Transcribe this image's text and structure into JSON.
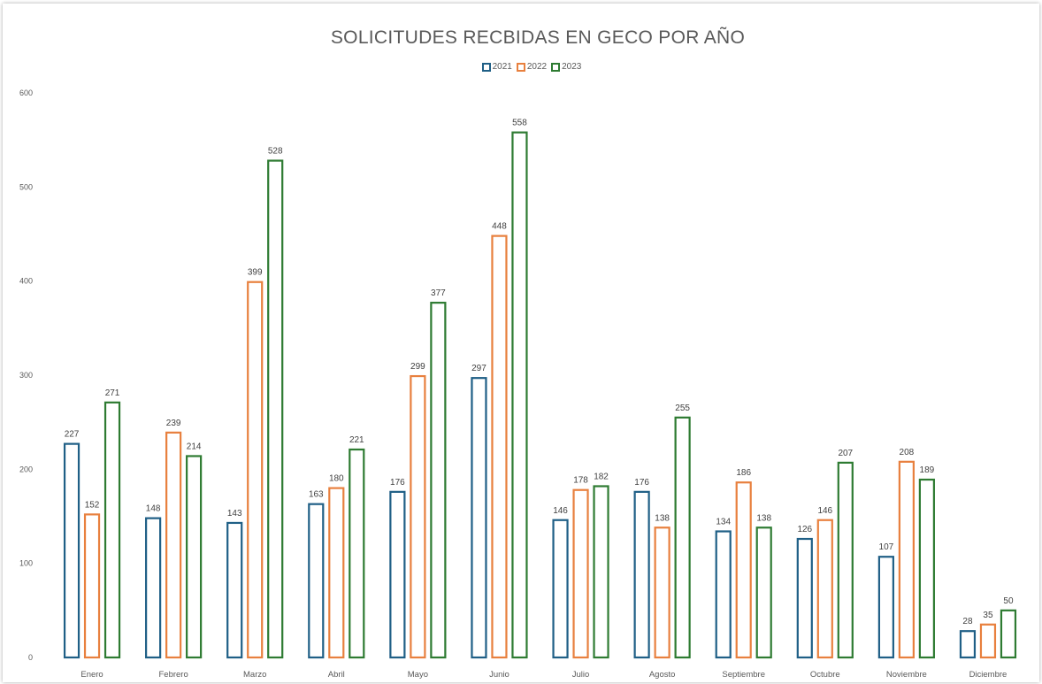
{
  "chart_data": {
    "type": "bar",
    "title": "SOLICITUDES RECBIDAS EN GECO POR AÑO",
    "xlabel": "",
    "ylabel": "",
    "ylim": [
      0,
      600
    ],
    "yticks": [
      "0",
      "100",
      "200",
      "300",
      "400",
      "500",
      "600"
    ],
    "grid": false,
    "legend_position": "top",
    "categories": [
      "Enero",
      "Febrero",
      "Marzo",
      "Abril",
      "Mayo",
      "Junio",
      "Julio",
      "Agosto",
      "Septiembre",
      "Octubre",
      "Noviembre",
      "Diciembre"
    ],
    "series": [
      {
        "name": "2021",
        "color": "#1f5f86",
        "values": [
          227,
          148,
          143,
          163,
          176,
          297,
          146,
          176,
          134,
          126,
          107,
          28
        ]
      },
      {
        "name": "2022",
        "color": "#e8803e",
        "values": [
          152,
          239,
          399,
          180,
          299,
          448,
          178,
          138,
          186,
          146,
          208,
          35
        ]
      },
      {
        "name": "2023",
        "color": "#2e7b32",
        "values": [
          271,
          214,
          528,
          221,
          377,
          558,
          182,
          255,
          138,
          207,
          189,
          50
        ]
      }
    ]
  }
}
